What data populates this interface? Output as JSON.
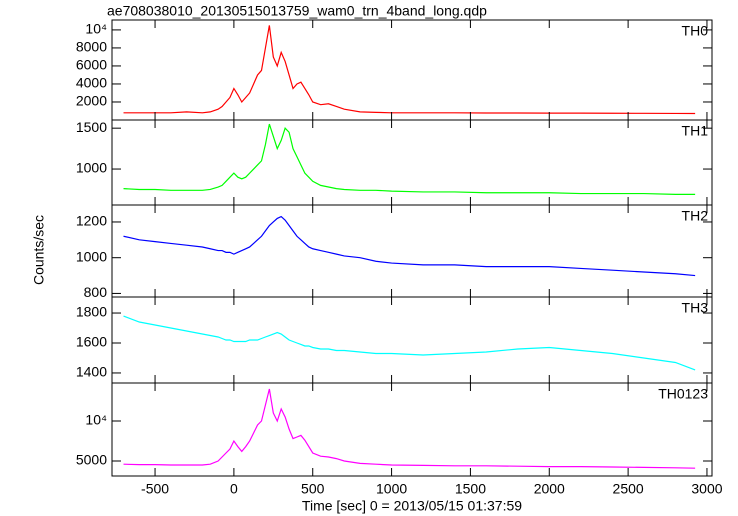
{
  "figure": {
    "title": "ae708038010_20130515013759_wam0_trn_4band_long.qdp",
    "x_label": "Time [sec] 0 = 2013/05/15 01:37:59",
    "y_label": "Counts/sec",
    "xlim": [
      -773,
      3032
    ],
    "xticks": [
      -500,
      0,
      500,
      1000,
      1500,
      2000,
      2500,
      3000
    ],
    "x": [
      -700,
      -600,
      -500,
      -400,
      -300,
      -200,
      -150,
      -100,
      -75,
      -50,
      -25,
      0,
      25,
      50,
      75,
      100,
      125,
      150,
      175,
      200,
      225,
      250,
      275,
      300,
      325,
      350,
      375,
      400,
      425,
      450,
      475,
      500,
      550,
      600,
      650,
      700,
      800,
      900,
      1000,
      1200,
      1400,
      1600,
      1800,
      2000,
      2200,
      2400,
      2600,
      2800,
      2925
    ]
  },
  "chart_data": [
    {
      "type": "line",
      "series": [
        {
          "name": "TH0",
          "color": "#ff0000",
          "values": [
            800,
            800,
            800,
            800,
            900,
            800,
            900,
            1200,
            1500,
            2000,
            2500,
            3500,
            2800,
            2000,
            2500,
            3000,
            4000,
            5000,
            5500,
            8000,
            10500,
            7000,
            6000,
            7500,
            6500,
            5000,
            3500,
            4000,
            4200,
            3500,
            2800,
            2000,
            1700,
            1800,
            1500,
            1200,
            900,
            850,
            800,
            800,
            800,
            780,
            780,
            760,
            760,
            750,
            740,
            730,
            720
          ]
        }
      ],
      "ylim": [
        0,
        11100
      ],
      "yticks": [
        2000,
        4000,
        6000,
        8000,
        {
          "value": 10000,
          "label": "10⁴"
        }
      ]
    },
    {
      "type": "line",
      "series": [
        {
          "name": "TH1",
          "color": "#00ff00",
          "values": [
            760,
            750,
            750,
            740,
            740,
            740,
            750,
            780,
            800,
            850,
            900,
            950,
            900,
            880,
            900,
            950,
            1000,
            1050,
            1100,
            1300,
            1550,
            1400,
            1250,
            1350,
            1500,
            1450,
            1250,
            1150,
            1050,
            950,
            900,
            850,
            800,
            780,
            760,
            750,
            740,
            740,
            730,
            720,
            720,
            710,
            710,
            710,
            700,
            700,
            700,
            690,
            690
          ]
        }
      ],
      "ylim": [
        560,
        1600
      ],
      "yticks": [
        1000,
        1500
      ]
    },
    {
      "type": "line",
      "series": [
        {
          "name": "TH2",
          "color": "#0000ff",
          "values": [
            1120,
            1100,
            1090,
            1080,
            1070,
            1060,
            1050,
            1040,
            1040,
            1030,
            1030,
            1020,
            1030,
            1040,
            1050,
            1060,
            1080,
            1100,
            1120,
            1150,
            1180,
            1200,
            1220,
            1230,
            1210,
            1180,
            1150,
            1120,
            1100,
            1080,
            1060,
            1050,
            1040,
            1030,
            1020,
            1010,
            1000,
            980,
            970,
            960,
            960,
            950,
            950,
            950,
            940,
            930,
            920,
            910,
            900
          ]
        }
      ],
      "ylim": [
        780,
        1295
      ],
      "yticks": [
        800,
        1000,
        1200
      ]
    },
    {
      "type": "line",
      "series": [
        {
          "name": "TH3",
          "color": "#00ffff",
          "values": [
            1780,
            1740,
            1720,
            1700,
            1680,
            1660,
            1650,
            1640,
            1630,
            1620,
            1620,
            1610,
            1610,
            1610,
            1610,
            1620,
            1620,
            1620,
            1630,
            1640,
            1650,
            1660,
            1670,
            1660,
            1640,
            1620,
            1610,
            1600,
            1590,
            1580,
            1580,
            1570,
            1560,
            1560,
            1550,
            1550,
            1540,
            1530,
            1530,
            1520,
            1530,
            1540,
            1560,
            1570,
            1550,
            1530,
            1500,
            1470,
            1420
          ]
        }
      ],
      "ylim": [
        1333,
        1907
      ],
      "yticks": [
        1400,
        1600,
        1800
      ]
    },
    {
      "type": "line",
      "series": [
        {
          "name": "TH0123",
          "color": "#ff00ff",
          "values": [
            4600,
            4550,
            4550,
            4500,
            4500,
            4500,
            4600,
            5000,
            5500,
            6000,
            6500,
            7500,
            6800,
            6200,
            6800,
            7500,
            8500,
            9500,
            10000,
            12000,
            14000,
            11000,
            10000,
            11500,
            10500,
            9000,
            7800,
            8000,
            8200,
            7600,
            6800,
            6000,
            5600,
            5500,
            5300,
            5000,
            4700,
            4600,
            4500,
            4450,
            4400,
            4400,
            4350,
            4300,
            4300,
            4250,
            4200,
            4150,
            4100
          ]
        }
      ],
      "ylim": [
        3125,
        14750
      ],
      "yticks": [
        5000,
        {
          "value": 10000,
          "label": "10⁴"
        }
      ]
    }
  ]
}
